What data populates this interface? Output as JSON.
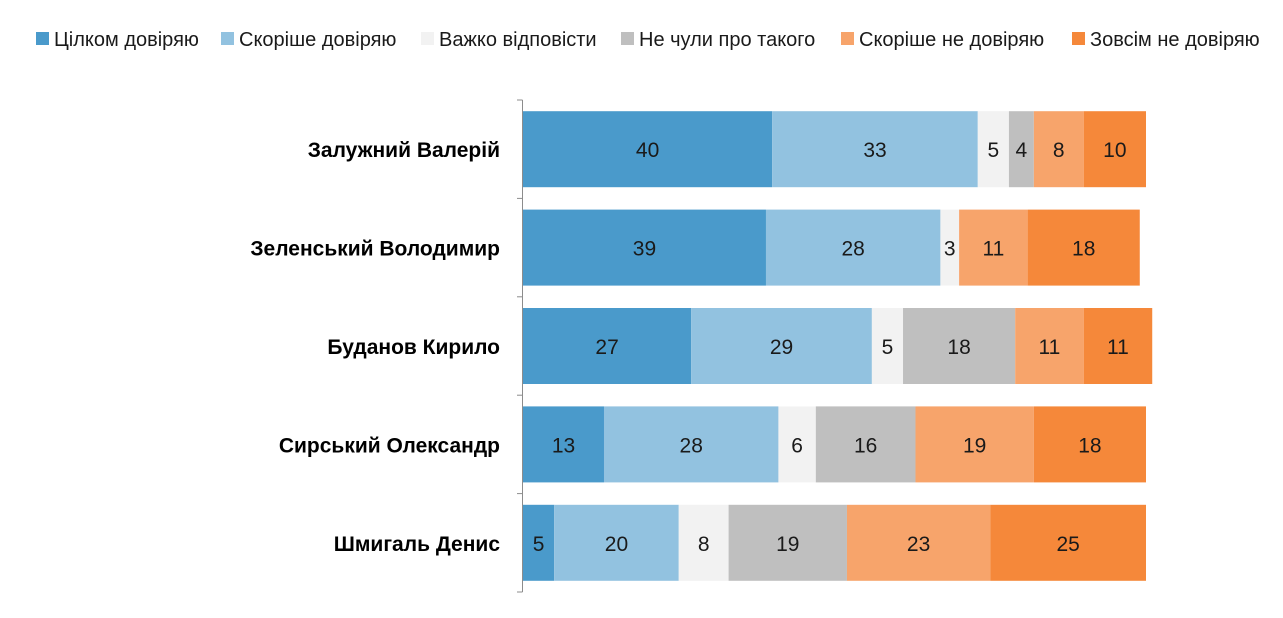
{
  "chart_data": {
    "type": "bar",
    "orientation": "horizontal",
    "stacked": true,
    "title": "",
    "xlabel": "",
    "ylabel": "",
    "xlim": [
      0,
      100
    ],
    "grid": false,
    "legend_position": "top",
    "categories": [
      "Залужний Валерій",
      "Зеленський Володимир",
      "Буданов Кирило",
      "Сирський Олександр",
      "Шмигаль Денис"
    ],
    "series": [
      {
        "name": "Цілком довіряю",
        "color": "#4a9acb",
        "values": [
          40,
          39,
          27,
          13,
          5
        ]
      },
      {
        "name": "Скоріше довіряю",
        "color": "#92c2e0",
        "values": [
          33,
          28,
          29,
          28,
          20
        ]
      },
      {
        "name": "Важко відповісти",
        "color": "#f2f2f2",
        "values": [
          5,
          3,
          5,
          6,
          8
        ]
      },
      {
        "name": "Не чули про такого",
        "color": "#bfbfbf",
        "values": [
          4,
          0,
          18,
          16,
          19
        ]
      },
      {
        "name": "Скоріше не довіряю",
        "color": "#f7a46b",
        "values": [
          8,
          11,
          11,
          19,
          23
        ]
      },
      {
        "name": "Зовсім не довіряю",
        "color": "#f5883a",
        "values": [
          10,
          18,
          11,
          18,
          25
        ]
      }
    ]
  }
}
